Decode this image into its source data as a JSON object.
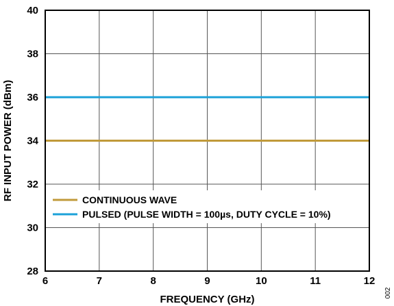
{
  "chart_data": {
    "type": "line",
    "xlabel": "FREQUENCY (GHz)",
    "ylabel": "RF INPUT POWER (dBm)",
    "xlim": [
      6,
      12
    ],
    "ylim": [
      28,
      40
    ],
    "xticks": [
      6,
      7,
      8,
      9,
      10,
      11,
      12
    ],
    "yticks": [
      28,
      30,
      32,
      34,
      36,
      38,
      40
    ],
    "x_tick_labels": [
      "6",
      "7",
      "8",
      "9",
      "10",
      "11",
      "12"
    ],
    "y_tick_labels": [
      "28",
      "30",
      "32",
      "34",
      "36",
      "38",
      "40"
    ],
    "grid": true,
    "legend_position": "lower-left",
    "series": [
      {
        "name": "CONTINUOUS WAVE",
        "color": "#c09a3a",
        "x": [
          6,
          12
        ],
        "y": [
          34,
          34
        ]
      },
      {
        "name": "PULSED (PULSE WIDTH = 100µs, DUTY CYCLE = 10%)",
        "color": "#1ba1d8",
        "x": [
          6,
          12
        ],
        "y": [
          36,
          36
        ]
      }
    ],
    "figure_id": "002"
  }
}
